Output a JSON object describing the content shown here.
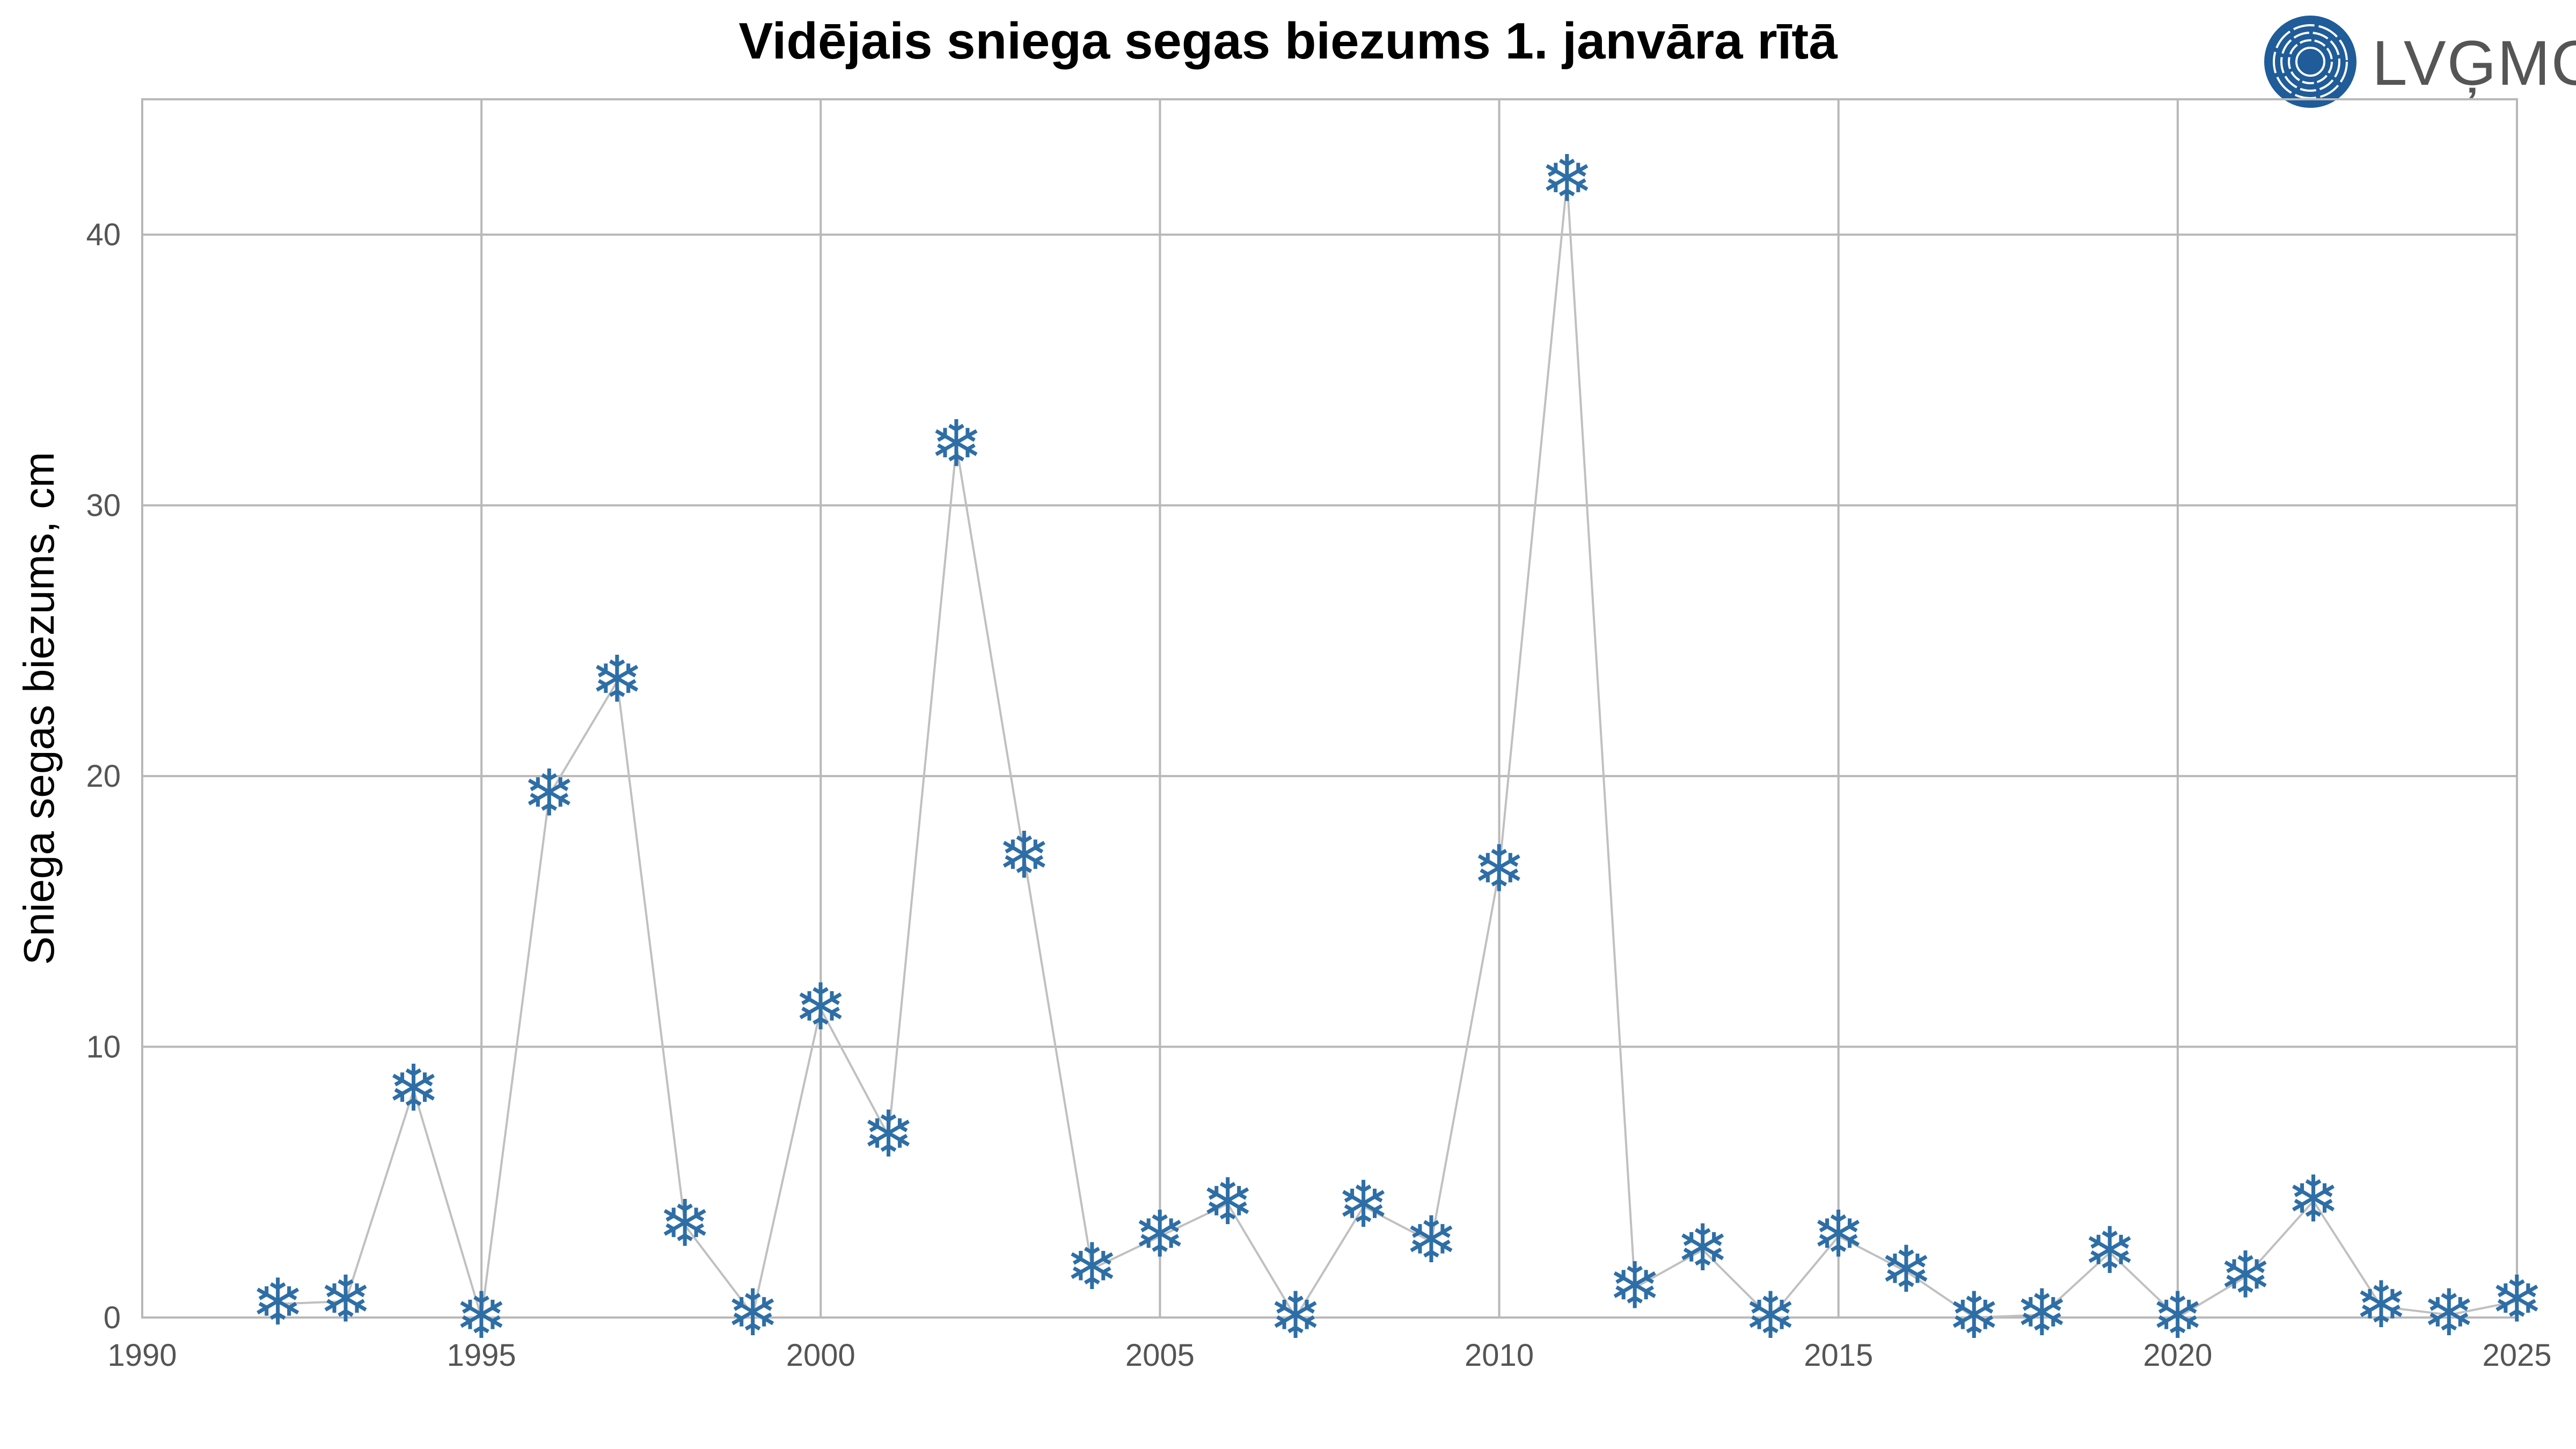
{
  "logo": {
    "text": "LVĢMC",
    "color": "#1f5c99"
  },
  "chart_data": {
    "type": "line",
    "title": "Vidējais sniega segas biezums 1. janvāra rītā",
    "xlabel": "",
    "ylabel": "Sniega segas biezums, cm",
    "xlim": [
      1990,
      2025
    ],
    "ylim": [
      0,
      45
    ],
    "xticks": [
      1990,
      1995,
      2000,
      2005,
      2010,
      2015,
      2020,
      2025
    ],
    "yticks": [
      0,
      10,
      20,
      30,
      40
    ],
    "grid": true,
    "marker": "snowflake-icon",
    "marker_color": "#2e6ea6",
    "line_color": "#c0c0c0",
    "x": [
      1992,
      1993,
      1994,
      1995,
      1996,
      1997,
      1998,
      1999,
      2000,
      2001,
      2002,
      2003,
      2004,
      2005,
      2006,
      2007,
      2008,
      2009,
      2010,
      2011,
      2012,
      2013,
      2014,
      2015,
      2016,
      2017,
      2018,
      2019,
      2020,
      2021,
      2022,
      2023,
      2024,
      2025
    ],
    "y": [
      0.5,
      0.6,
      8.4,
      0,
      19.3,
      23.5,
      3.4,
      0.1,
      11.4,
      6.7,
      32.2,
      17.0,
      1.8,
      3.0,
      4.2,
      0,
      4.1,
      2.8,
      16.5,
      42.0,
      1.1,
      2.5,
      0,
      3.0,
      1.7,
      0,
      0.1,
      2.4,
      0,
      1.5,
      4.3,
      0.4,
      0.1,
      0.6
    ]
  }
}
